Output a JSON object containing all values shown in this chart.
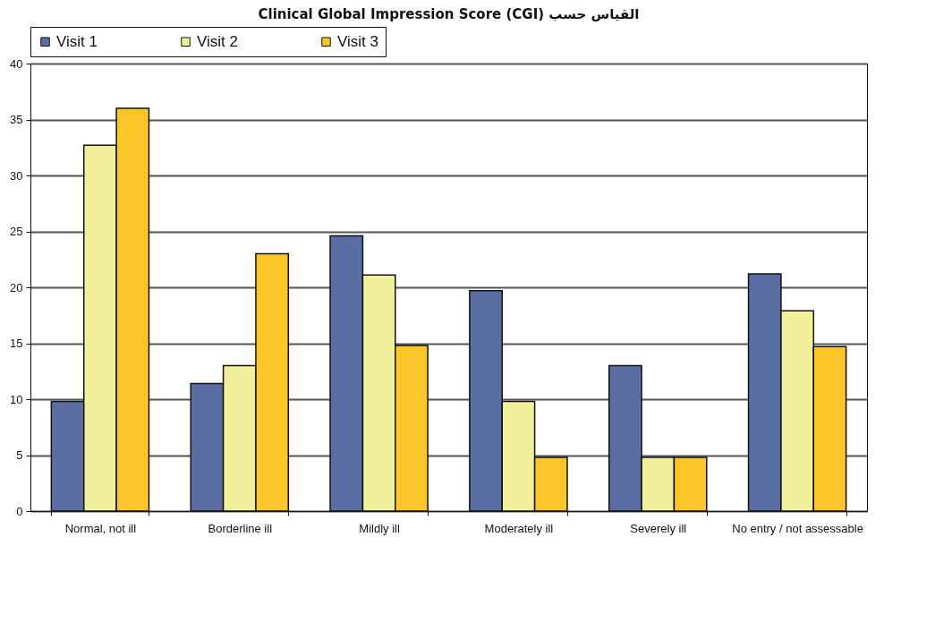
{
  "chart_data": {
    "type": "bar",
    "title": "Clinical Global Impression Score (CGI) القياس حسب",
    "categories": [
      "Normal, not ill",
      "Borderline ill",
      "Mildly ill",
      "Moderately ill",
      "Severely ill",
      "No entry / not assessable"
    ],
    "series": [
      {
        "name": "Visit 1",
        "color": "#5b6ea3",
        "values": [
          9.8,
          11.4,
          24.6,
          19.7,
          13.0,
          21.2
        ]
      },
      {
        "name": "Visit 2",
        "color": "#f3f09c",
        "values": [
          32.7,
          13.0,
          21.1,
          9.8,
          4.8,
          17.9
        ]
      },
      {
        "name": "Visit 3",
        "color": "#fcc52a",
        "values": [
          36.0,
          23.0,
          14.8,
          4.8,
          4.8,
          14.7
        ]
      }
    ],
    "ylim": [
      0,
      40
    ],
    "yticks": [
      0,
      5,
      10,
      15,
      20,
      25,
      30,
      35,
      40
    ],
    "grid": "y",
    "legend": "top"
  }
}
